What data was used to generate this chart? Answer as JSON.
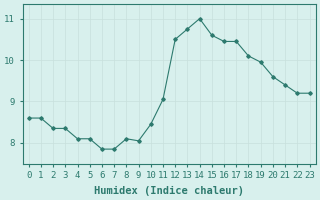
{
  "x": [
    0,
    1,
    2,
    3,
    4,
    5,
    6,
    7,
    8,
    9,
    10,
    11,
    12,
    13,
    14,
    15,
    16,
    17,
    18,
    19,
    20,
    21,
    22,
    23
  ],
  "y": [
    8.6,
    8.6,
    8.35,
    8.35,
    8.1,
    8.1,
    7.85,
    7.85,
    8.1,
    8.05,
    8.45,
    9.05,
    10.5,
    10.75,
    11.0,
    10.6,
    10.45,
    10.45,
    10.1,
    9.95,
    9.6,
    9.4,
    9.2,
    9.2
  ],
  "line_color": "#2d7a6e",
  "marker_color": "#2d7a6e",
  "bg_color": "#d8f0ed",
  "grid_color_major": "#c8e0dc",
  "grid_color_minor": "#c8e0dc",
  "xlabel": "Humidex (Indice chaleur)",
  "xlim": [
    -0.5,
    23.5
  ],
  "ylim": [
    7.5,
    11.35
  ],
  "yticks": [
    8,
    9,
    10,
    11
  ],
  "xticks": [
    0,
    1,
    2,
    3,
    4,
    5,
    6,
    7,
    8,
    9,
    10,
    11,
    12,
    13,
    14,
    15,
    16,
    17,
    18,
    19,
    20,
    21,
    22,
    23
  ],
  "xlabel_fontsize": 7.5,
  "tick_fontsize": 6.5
}
